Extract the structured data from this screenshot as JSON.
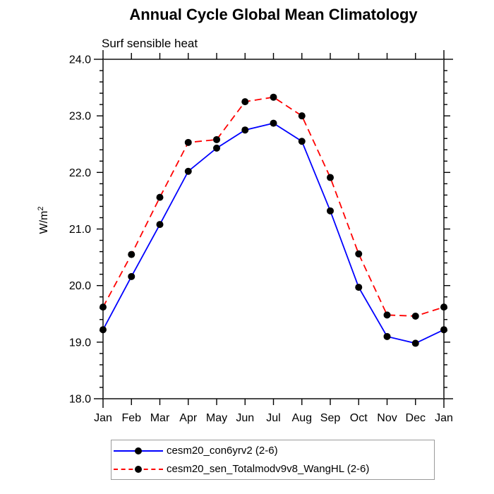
{
  "title": "Annual Cycle Global Mean Climatology",
  "subtitle": "Surf sensible heat",
  "chart_data": {
    "type": "line",
    "categories": [
      "Jan",
      "Feb",
      "Mar",
      "Apr",
      "May",
      "Jun",
      "Jul",
      "Aug",
      "Sep",
      "Oct",
      "Nov",
      "Dec",
      "Jan"
    ],
    "series": [
      {
        "name": "cesm20_con6yrv2 (2-6)",
        "color": "#0000ff",
        "style": "solid",
        "marker": "filled-circle",
        "marker_color": "#000000",
        "values": [
          19.22,
          20.16,
          21.08,
          22.02,
          22.43,
          22.75,
          22.87,
          22.55,
          21.32,
          19.97,
          19.1,
          18.98,
          19.22
        ]
      },
      {
        "name": "cesm20_sen_Totalmodv9v8_WangHL (2-6)",
        "color": "#ff0000",
        "style": "dashed",
        "marker": "filled-circle",
        "marker_color": "#000000",
        "values": [
          19.62,
          20.55,
          21.56,
          22.53,
          22.58,
          23.25,
          23.33,
          23.0,
          21.91,
          20.56,
          19.48,
          19.46,
          19.62
        ]
      }
    ],
    "xlabel": "",
    "ylabel": "W/m²",
    "ylim": [
      18.0,
      24.0
    ],
    "y_major_step": 1.0,
    "y_minor_step": 0.2,
    "y_tick_labels": [
      "18.0",
      "19.0",
      "20.0",
      "21.0",
      "22.0",
      "23.0",
      "24.0"
    ],
    "grid": false,
    "legend_position": "bottom",
    "axis_color": "#4a4a4a",
    "tick_color": "#000000"
  }
}
